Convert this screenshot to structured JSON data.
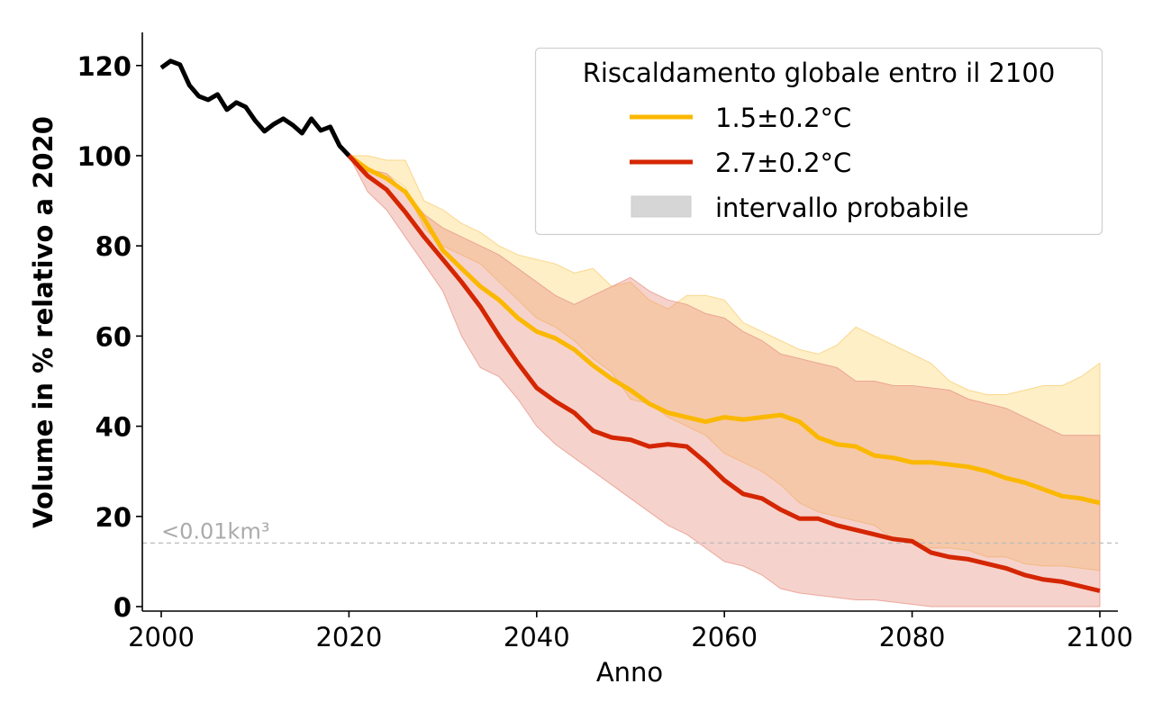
{
  "chart_data": {
    "type": "line",
    "title": "",
    "xlabel": "Anno",
    "ylabel": "Volume in % relativo a 2020",
    "xlim": [
      1998,
      2102
    ],
    "ylim": [
      -1,
      127
    ],
    "xticks": [
      2000,
      2020,
      2040,
      2060,
      2080,
      2100
    ],
    "yticks": [
      0,
      20,
      40,
      60,
      80,
      100,
      120
    ],
    "grid": false,
    "legend": {
      "title": "Riscaldamento globale entro il 2100",
      "placement": "top-right",
      "entries": [
        {
          "label": "1.5±0.2°C",
          "kind": "line",
          "color": "#FBB800"
        },
        {
          "label": "2.7±0.2°C",
          "kind": "line",
          "color": "#D42600"
        },
        {
          "label": "intervallo probabile",
          "kind": "patch",
          "color": "#D6D6D6"
        }
      ]
    },
    "annotations": [
      {
        "text": "<0.01km³",
        "y": 14.1,
        "kind": "dashed-hline",
        "color": "#AAAAAA"
      }
    ],
    "series": [
      {
        "name": "storico",
        "color": "#000000",
        "x": [
          2000,
          2001,
          2002,
          2003,
          2004,
          2005,
          2006,
          2007,
          2008,
          2009,
          2010,
          2011,
          2012,
          2013,
          2014,
          2015,
          2016,
          2017,
          2018,
          2019,
          2020
        ],
        "values": [
          119.5,
          121,
          120.2,
          115.6,
          113.2,
          112.4,
          113.6,
          110.2,
          111.8,
          110.8,
          107.8,
          105.4,
          107,
          108.2,
          106.8,
          105,
          108.2,
          105.6,
          106.4,
          102.2,
          100
        ]
      },
      {
        "name": "1.5±0.2°C",
        "color": "#FBB800",
        "x": [
          2020,
          2022,
          2024,
          2026,
          2028,
          2030,
          2032,
          2034,
          2036,
          2038,
          2040,
          2042,
          2044,
          2046,
          2048,
          2050,
          2052,
          2054,
          2056,
          2058,
          2060,
          2062,
          2064,
          2066,
          2068,
          2070,
          2072,
          2074,
          2076,
          2078,
          2080,
          2082,
          2084,
          2086,
          2088,
          2090,
          2092,
          2094,
          2096,
          2098,
          2100
        ],
        "values": [
          100,
          97,
          95,
          92,
          86,
          79,
          75,
          71,
          68,
          64,
          61,
          59.5,
          57,
          53.5,
          50.5,
          48,
          45,
          43,
          42,
          41,
          42,
          41.5,
          42,
          42.5,
          41,
          37.5,
          36,
          35.5,
          33.5,
          33,
          32,
          32,
          31.5,
          31,
          30,
          28.5,
          27.5,
          26,
          24.5,
          24,
          23
        ],
        "band_upper": [
          100,
          100,
          99,
          99,
          90,
          88,
          85,
          83,
          80,
          78,
          77,
          76,
          74,
          75,
          71,
          72,
          68,
          66,
          69,
          69,
          68,
          63,
          61,
          59,
          57,
          56,
          58,
          62,
          60,
          58,
          56,
          54,
          50,
          48,
          47,
          47,
          48,
          49,
          49,
          51,
          54
        ],
        "band_lower": [
          100,
          97,
          96,
          93,
          84,
          80,
          78,
          76,
          72,
          68,
          64,
          62,
          59,
          55,
          52,
          46,
          45,
          42,
          40,
          38,
          34,
          32,
          30,
          27,
          23,
          21,
          20,
          19,
          18,
          15,
          14,
          13,
          13,
          12.5,
          11,
          11,
          9.5,
          9,
          9,
          8.5,
          8
        ]
      },
      {
        "name": "2.7±0.2°C",
        "color": "#D42600",
        "x": [
          2020,
          2022,
          2024,
          2026,
          2028,
          2030,
          2032,
          2034,
          2036,
          2038,
          2040,
          2042,
          2044,
          2046,
          2048,
          2050,
          2052,
          2054,
          2056,
          2058,
          2060,
          2062,
          2064,
          2066,
          2068,
          2070,
          2072,
          2074,
          2076,
          2078,
          2080,
          2082,
          2084,
          2086,
          2088,
          2090,
          2092,
          2094,
          2096,
          2098,
          2100
        ],
        "values": [
          100,
          95.5,
          92.5,
          87.5,
          82,
          77,
          72,
          66.5,
          60,
          54,
          48.5,
          45.5,
          43,
          39,
          37.5,
          37,
          35.5,
          36,
          35.5,
          32,
          28,
          25,
          24,
          21.5,
          19.5,
          19.5,
          18,
          17,
          16,
          15,
          14.5,
          12,
          11,
          10.5,
          9.5,
          8.5,
          7,
          6,
          5.5,
          4.5,
          3.5
        ],
        "band_upper": [
          100,
          97,
          96,
          92,
          87,
          84,
          82,
          80,
          78,
          75,
          72,
          69,
          67,
          69,
          71,
          73,
          70,
          68,
          67,
          65,
          64,
          61,
          59,
          56,
          55,
          54,
          53,
          50,
          50,
          49,
          49,
          48.5,
          48,
          46,
          45,
          44,
          42,
          40,
          38,
          38,
          38
        ],
        "band_lower": [
          100,
          92,
          88,
          82,
          76,
          70,
          60,
          53,
          51,
          46,
          40,
          36,
          33,
          30,
          27,
          24,
          21,
          18,
          16,
          13,
          10,
          9,
          7,
          4,
          3,
          2.5,
          2,
          1.5,
          1.5,
          1,
          0.5,
          0,
          0,
          0,
          0,
          0,
          0,
          0,
          0,
          0,
          0
        ]
      }
    ],
    "band_colors": {
      "1.5±0.2°C": "#FDE3A0",
      "2.7±0.2°C": "#EC9A8C"
    }
  }
}
